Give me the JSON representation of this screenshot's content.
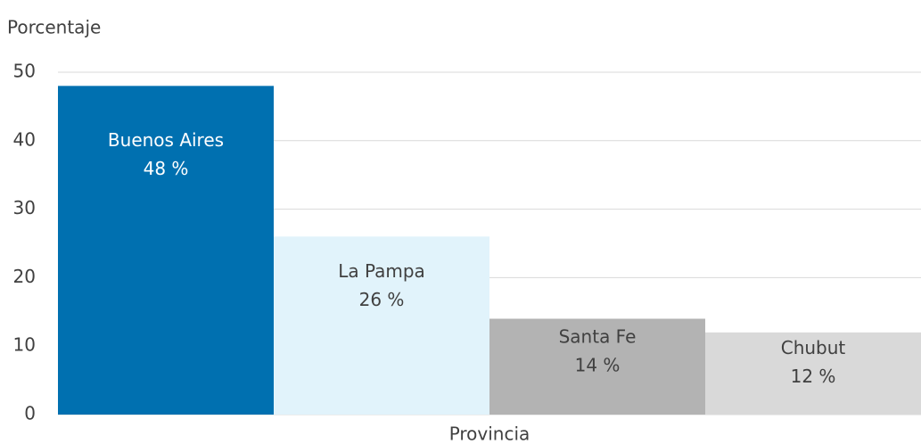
{
  "chart_data": {
    "type": "bar",
    "ylabel": "Porcentaje",
    "xlabel": "Provincia",
    "categories": [
      "Buenos Aires",
      "La Pampa",
      "Santa Fe",
      "Chubut"
    ],
    "values": [
      48,
      26,
      14,
      12
    ],
    "value_labels": [
      "48 %",
      "26 %",
      "14 %",
      "12 %"
    ],
    "colors": [
      "#0070b0",
      "#e1f3fb",
      "#b3b3b3",
      "#d9d9d9"
    ],
    "ylim": [
      0,
      50
    ],
    "yticks": [
      0,
      10,
      20,
      30,
      40,
      50
    ],
    "grid": true
  }
}
